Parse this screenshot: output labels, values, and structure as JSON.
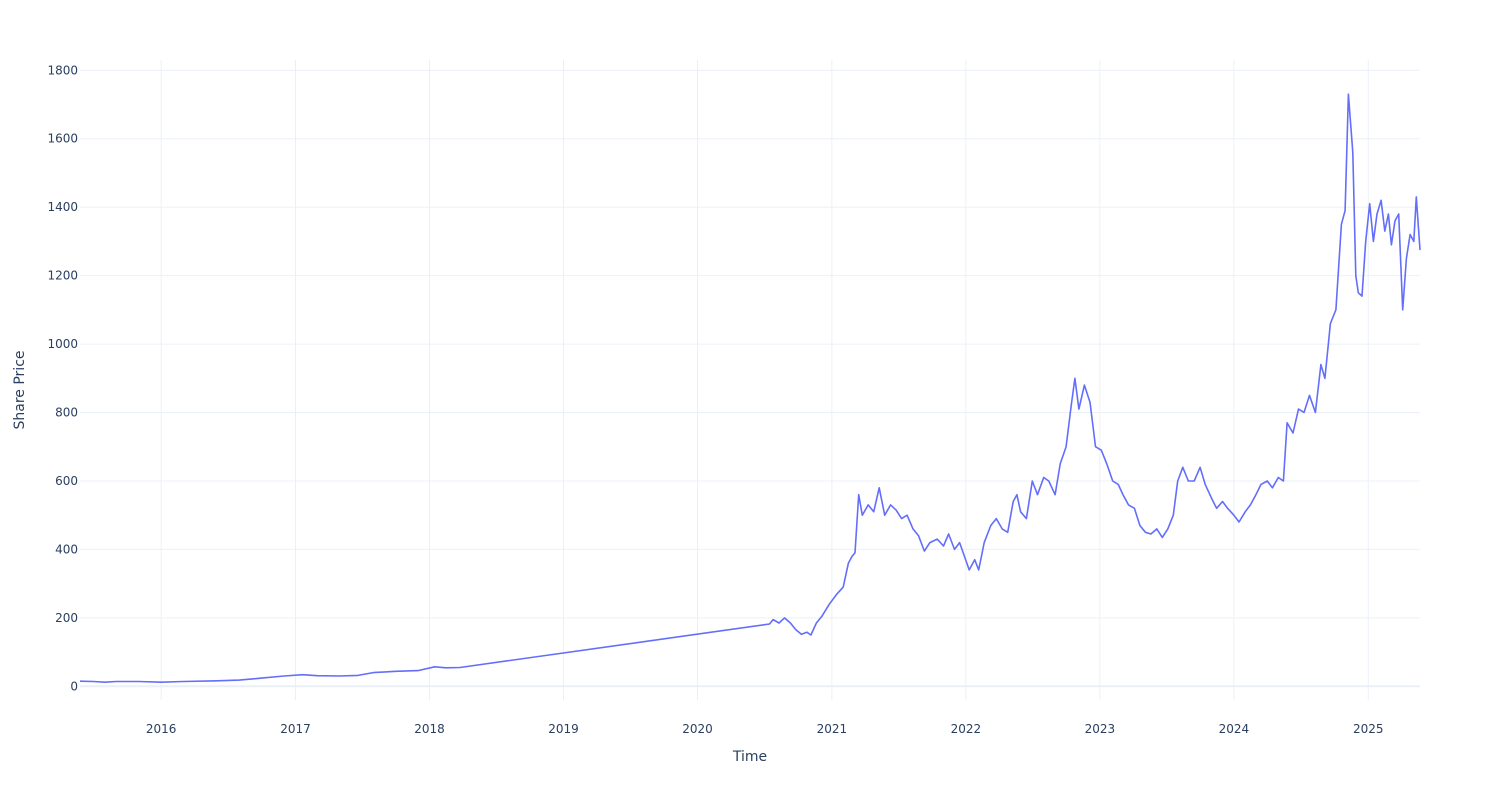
{
  "chart_data": {
    "type": "line",
    "title": "",
    "xlabel": "Time",
    "ylabel": "Share Price",
    "xlim": [
      "2015-05-25",
      "2025-05-22"
    ],
    "ylim": [
      -40,
      1830
    ],
    "x_ticks": [
      "2016",
      "2017",
      "2018",
      "2019",
      "2020",
      "2021",
      "2022",
      "2023",
      "2024",
      "2025"
    ],
    "y_ticks": [
      0,
      200,
      400,
      600,
      800,
      1000,
      1200,
      1400,
      1600,
      1800
    ],
    "grid": true,
    "legend": false,
    "colors": {
      "line": "#636efa",
      "grid": "#ebf0f8",
      "text": "#2a3f5f"
    },
    "series": [
      {
        "points": [
          [
            "2015-05-25",
            15
          ],
          [
            "2015-07-01",
            14
          ],
          [
            "2015-08-01",
            12
          ],
          [
            "2015-09-01",
            14
          ],
          [
            "2015-11-01",
            14
          ],
          [
            "2016-01-01",
            12
          ],
          [
            "2016-03-01",
            14
          ],
          [
            "2016-06-01",
            16
          ],
          [
            "2016-08-01",
            18
          ],
          [
            "2016-10-01",
            24
          ],
          [
            "2016-12-01",
            30
          ],
          [
            "2017-01-20",
            34
          ],
          [
            "2017-03-01",
            31
          ],
          [
            "2017-05-01",
            30
          ],
          [
            "2017-06-20",
            32
          ],
          [
            "2017-08-01",
            40
          ],
          [
            "2017-10-01",
            44
          ],
          [
            "2017-12-01",
            46
          ],
          [
            "2018-01-15",
            57
          ],
          [
            "2018-02-15",
            54
          ],
          [
            "2018-03-25",
            55
          ],
          [
            "2020-07-15",
            182
          ],
          [
            "2020-07-25",
            195
          ],
          [
            "2020-08-10",
            185
          ],
          [
            "2020-08-25",
            200
          ],
          [
            "2020-09-10",
            185
          ],
          [
            "2020-09-25",
            165
          ],
          [
            "2020-10-10",
            152
          ],
          [
            "2020-10-25",
            158
          ],
          [
            "2020-11-05",
            150
          ],
          [
            "2020-11-20",
            185
          ],
          [
            "2020-12-05",
            205
          ],
          [
            "2020-12-25",
            240
          ],
          [
            "2021-01-15",
            270
          ],
          [
            "2021-02-01",
            290
          ],
          [
            "2021-02-15",
            360
          ],
          [
            "2021-02-25",
            380
          ],
          [
            "2021-03-05",
            390
          ],
          [
            "2021-03-15",
            560
          ],
          [
            "2021-03-25",
            500
          ],
          [
            "2021-04-10",
            530
          ],
          [
            "2021-04-25",
            510
          ],
          [
            "2021-05-10",
            580
          ],
          [
            "2021-05-25",
            500
          ],
          [
            "2021-06-10",
            530
          ],
          [
            "2021-06-25",
            515
          ],
          [
            "2021-07-10",
            490
          ],
          [
            "2021-07-25",
            500
          ],
          [
            "2021-08-10",
            460
          ],
          [
            "2021-08-25",
            440
          ],
          [
            "2021-09-10",
            395
          ],
          [
            "2021-09-25",
            420
          ],
          [
            "2021-10-15",
            430
          ],
          [
            "2021-11-01",
            410
          ],
          [
            "2021-11-15",
            445
          ],
          [
            "2021-12-01",
            400
          ],
          [
            "2021-12-15",
            420
          ],
          [
            "2022-01-10",
            340
          ],
          [
            "2022-01-25",
            370
          ],
          [
            "2022-02-05",
            340
          ],
          [
            "2022-02-20",
            420
          ],
          [
            "2022-03-10",
            470
          ],
          [
            "2022-03-25",
            490
          ],
          [
            "2022-04-10",
            460
          ],
          [
            "2022-04-25",
            450
          ],
          [
            "2022-05-10",
            540
          ],
          [
            "2022-05-20",
            560
          ],
          [
            "2022-05-30",
            510
          ],
          [
            "2022-06-15",
            490
          ],
          [
            "2022-07-01",
            600
          ],
          [
            "2022-07-15",
            560
          ],
          [
            "2022-08-01",
            610
          ],
          [
            "2022-08-15",
            600
          ],
          [
            "2022-09-01",
            560
          ],
          [
            "2022-09-15",
            650
          ],
          [
            "2022-10-01",
            700
          ],
          [
            "2022-10-15",
            820
          ],
          [
            "2022-10-25",
            900
          ],
          [
            "2022-11-05",
            810
          ],
          [
            "2022-11-20",
            880
          ],
          [
            "2022-12-05",
            830
          ],
          [
            "2022-12-20",
            700
          ],
          [
            "2023-01-05",
            690
          ],
          [
            "2023-01-20",
            650
          ],
          [
            "2023-02-05",
            600
          ],
          [
            "2023-02-20",
            590
          ],
          [
            "2023-03-05",
            560
          ],
          [
            "2023-03-20",
            530
          ],
          [
            "2023-04-05",
            520
          ],
          [
            "2023-04-20",
            470
          ],
          [
            "2023-05-05",
            450
          ],
          [
            "2023-05-20",
            445
          ],
          [
            "2023-06-05",
            460
          ],
          [
            "2023-06-20",
            435
          ],
          [
            "2023-07-05",
            460
          ],
          [
            "2023-07-20",
            500
          ],
          [
            "2023-08-01",
            600
          ],
          [
            "2023-08-15",
            640
          ],
          [
            "2023-08-30",
            600
          ],
          [
            "2023-09-15",
            600
          ],
          [
            "2023-10-01",
            640
          ],
          [
            "2023-10-15",
            590
          ],
          [
            "2023-11-01",
            550
          ],
          [
            "2023-11-15",
            520
          ],
          [
            "2023-12-01",
            540
          ],
          [
            "2023-12-15",
            520
          ],
          [
            "2024-01-01",
            500
          ],
          [
            "2024-01-15",
            480
          ],
          [
            "2024-02-01",
            510
          ],
          [
            "2024-02-15",
            530
          ],
          [
            "2024-03-01",
            560
          ],
          [
            "2024-03-15",
            590
          ],
          [
            "2024-04-01",
            600
          ],
          [
            "2024-04-15",
            580
          ],
          [
            "2024-05-01",
            610
          ],
          [
            "2024-05-15",
            600
          ],
          [
            "2024-05-25",
            770
          ],
          [
            "2024-06-10",
            740
          ],
          [
            "2024-06-25",
            810
          ],
          [
            "2024-07-10",
            800
          ],
          [
            "2024-07-25",
            850
          ],
          [
            "2024-08-10",
            800
          ],
          [
            "2024-08-25",
            940
          ],
          [
            "2024-09-05",
            900
          ],
          [
            "2024-09-20",
            1060
          ],
          [
            "2024-10-05",
            1100
          ],
          [
            "2024-10-20",
            1350
          ],
          [
            "2024-10-30",
            1390
          ],
          [
            "2024-11-08",
            1730
          ],
          [
            "2024-11-20",
            1560
          ],
          [
            "2024-11-28",
            1200
          ],
          [
            "2024-12-05",
            1150
          ],
          [
            "2024-12-15",
            1140
          ],
          [
            "2024-12-25",
            1300
          ],
          [
            "2025-01-05",
            1410
          ],
          [
            "2025-01-15",
            1300
          ],
          [
            "2025-01-25",
            1380
          ],
          [
            "2025-02-05",
            1420
          ],
          [
            "2025-02-15",
            1330
          ],
          [
            "2025-02-25",
            1380
          ],
          [
            "2025-03-05",
            1290
          ],
          [
            "2025-03-15",
            1360
          ],
          [
            "2025-03-25",
            1380
          ],
          [
            "2025-04-05",
            1100
          ],
          [
            "2025-04-15",
            1250
          ],
          [
            "2025-04-25",
            1320
          ],
          [
            "2025-05-05",
            1300
          ],
          [
            "2025-05-12",
            1430
          ],
          [
            "2025-05-22",
            1275
          ]
        ]
      }
    ]
  }
}
